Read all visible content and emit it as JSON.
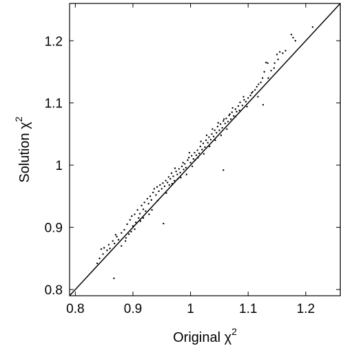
{
  "chart_data": {
    "type": "scatter",
    "xlabel": {
      "text": "Original χ",
      "sup": "2"
    },
    "ylabel": {
      "text": "Solution χ",
      "sup": "2"
    },
    "xlim": [
      0.79,
      1.26
    ],
    "ylim": [
      0.79,
      1.26
    ],
    "xticks": [
      "0.8",
      "0.9",
      "1",
      "1.1",
      "1.2"
    ],
    "xtick_values": [
      0.8,
      0.9,
      1.0,
      1.1,
      1.2
    ],
    "yticks": [
      "0.8",
      "0.9",
      "1",
      "1.1",
      "1.2"
    ],
    "ytick_values": [
      0.8,
      0.9,
      1.0,
      1.1,
      1.2
    ],
    "grid": false,
    "reference_line": {
      "x": [
        0.79,
        1.26
      ],
      "y": [
        0.79,
        1.26
      ]
    },
    "series": [
      {
        "marker": "dot",
        "color": "#000000",
        "points": [
          [
            0.845,
            0.865
          ],
          [
            0.85,
            0.867
          ],
          [
            0.855,
            0.863
          ],
          [
            0.86,
            0.866
          ],
          [
            0.848,
            0.857
          ],
          [
            0.858,
            0.872
          ],
          [
            0.865,
            0.878
          ],
          [
            0.87,
            0.888
          ],
          [
            0.868,
            0.874
          ],
          [
            0.875,
            0.88
          ],
          [
            0.88,
            0.891
          ],
          [
            0.872,
            0.885
          ],
          [
            0.885,
            0.896
          ],
          [
            0.89,
            0.905
          ],
          [
            0.888,
            0.883
          ],
          [
            0.893,
            0.889
          ],
          [
            0.887,
            0.878
          ],
          [
            0.895,
            0.912
          ],
          [
            0.9,
            0.902
          ],
          [
            0.898,
            0.918
          ],
          [
            0.903,
            0.921
          ],
          [
            0.905,
            0.908
          ],
          [
            0.908,
            0.928
          ],
          [
            0.91,
            0.915
          ],
          [
            0.912,
            0.922
          ],
          [
            0.915,
            0.935
          ],
          [
            0.918,
            0.929
          ],
          [
            0.92,
            0.94
          ],
          [
            0.913,
            0.91
          ],
          [
            0.922,
            0.926
          ],
          [
            0.925,
            0.946
          ],
          [
            0.927,
            0.938
          ],
          [
            0.93,
            0.95
          ],
          [
            0.932,
            0.944
          ],
          [
            0.935,
            0.956
          ],
          [
            0.928,
            0.921
          ],
          [
            0.937,
            0.962
          ],
          [
            0.94,
            0.952
          ],
          [
            0.942,
            0.965
          ],
          [
            0.945,
            0.958
          ],
          [
            0.947,
            0.968
          ],
          [
            0.95,
            0.962
          ],
          [
            0.952,
            0.971
          ],
          [
            0.955,
            0.966
          ],
          [
            0.953,
            0.906
          ],
          [
            0.957,
            0.975
          ],
          [
            0.96,
            0.972
          ],
          [
            0.962,
            0.981
          ],
          [
            0.965,
            0.978
          ],
          [
            0.967,
            0.987
          ],
          [
            0.97,
            0.982
          ],
          [
            0.972,
            0.975
          ],
          [
            0.975,
            0.99
          ],
          [
            0.977,
            0.985
          ],
          [
            0.98,
            0.994
          ],
          [
            0.982,
            0.988
          ],
          [
            0.985,
            0.998
          ],
          [
            0.987,
            1.004
          ],
          [
            0.99,
            1.002
          ],
          [
            0.992,
            0.996
          ],
          [
            0.995,
            1.008
          ],
          [
            0.997,
            1.012
          ],
          [
            1.0,
            1.004
          ],
          [
            1.002,
            1.015
          ],
          [
            1.005,
            1.01
          ],
          [
            1.007,
            1.02
          ],
          [
            1.01,
            1.016
          ],
          [
            1.012,
            1.024
          ],
          [
            1.015,
            1.019
          ],
          [
            1.017,
            1.03
          ],
          [
            1.02,
            1.025
          ],
          [
            1.022,
            1.035
          ],
          [
            1.025,
            1.029
          ],
          [
            1.027,
            1.04
          ],
          [
            1.03,
            1.036
          ],
          [
            1.032,
            1.045
          ],
          [
            1.035,
            1.041
          ],
          [
            1.037,
            1.05
          ],
          [
            1.04,
            1.046
          ],
          [
            1.042,
            1.056
          ],
          [
            1.045,
            1.052
          ],
          [
            1.047,
            1.062
          ],
          [
            1.05,
            1.056
          ],
          [
            1.052,
            1.066
          ],
          [
            1.055,
            1.06
          ],
          [
            1.057,
            1.071
          ],
          [
            1.057,
            0.992
          ],
          [
            1.06,
            1.067
          ],
          [
            1.062,
            1.075
          ],
          [
            1.065,
            1.07
          ],
          [
            1.067,
            1.08
          ],
          [
            1.07,
            1.074
          ],
          [
            1.072,
            1.085
          ],
          [
            1.075,
            1.079
          ],
          [
            1.078,
            1.09
          ],
          [
            1.08,
            1.086
          ],
          [
            1.083,
            1.095
          ],
          [
            1.086,
            1.101
          ],
          [
            1.09,
            1.096
          ],
          [
            1.093,
            1.105
          ],
          [
            1.096,
            1.102
          ],
          [
            1.1,
            1.108
          ],
          [
            1.104,
            1.112
          ],
          [
            1.108,
            1.118
          ],
          [
            1.112,
            1.121
          ],
          [
            1.115,
            1.126
          ],
          [
            1.118,
            1.13
          ],
          [
            1.122,
            1.133
          ],
          [
            1.125,
            1.14
          ],
          [
            1.128,
            1.15
          ],
          [
            1.131,
            1.165
          ],
          [
            1.134,
            1.164
          ],
          [
            1.126,
            1.097
          ],
          [
            1.14,
            1.152
          ],
          [
            1.145,
            1.156
          ],
          [
            1.152,
            1.17
          ],
          [
            1.155,
            1.182
          ],
          [
            1.16,
            1.18
          ],
          [
            1.165,
            1.184
          ],
          [
            1.175,
            1.21
          ],
          [
            1.178,
            1.205
          ],
          [
            1.182,
            1.2
          ],
          [
            1.212,
            1.222
          ],
          [
            0.867,
            0.818
          ],
          [
            0.838,
            0.842
          ],
          [
            0.842,
            0.85
          ],
          [
            0.88,
            0.87
          ],
          [
            0.897,
            0.893
          ],
          [
            0.903,
            0.897
          ],
          [
            0.918,
            0.915
          ],
          [
            0.933,
            0.928
          ],
          [
            0.943,
            0.943
          ],
          [
            0.958,
            0.955
          ],
          [
            0.963,
            0.968
          ],
          [
            0.968,
            0.97
          ],
          [
            0.973,
            0.995
          ],
          [
            0.978,
            0.978
          ],
          [
            0.983,
            0.98
          ],
          [
            0.988,
            0.993
          ],
          [
            0.993,
            0.985
          ],
          [
            0.998,
            1.02
          ],
          [
            1.003,
            0.998
          ],
          [
            1.008,
            1.008
          ],
          [
            1.013,
            1.012
          ],
          [
            1.018,
            1.038
          ],
          [
            1.023,
            1.018
          ],
          [
            1.028,
            1.048
          ],
          [
            1.033,
            1.03
          ],
          [
            1.038,
            1.058
          ],
          [
            1.043,
            1.04
          ],
          [
            1.048,
            1.068
          ],
          [
            1.053,
            1.048
          ],
          [
            1.058,
            1.074
          ],
          [
            1.063,
            1.058
          ],
          [
            1.068,
            1.082
          ],
          [
            1.073,
            1.092
          ],
          [
            1.078,
            1.078
          ],
          [
            1.085,
            1.088
          ],
          [
            1.092,
            1.11
          ],
          [
            1.098,
            1.094
          ],
          [
            1.106,
            1.116
          ],
          [
            1.117,
            1.11
          ],
          [
            1.135,
            1.14
          ],
          [
            1.146,
            1.164
          ],
          [
            1.15,
            1.178
          ]
        ]
      }
    ]
  }
}
